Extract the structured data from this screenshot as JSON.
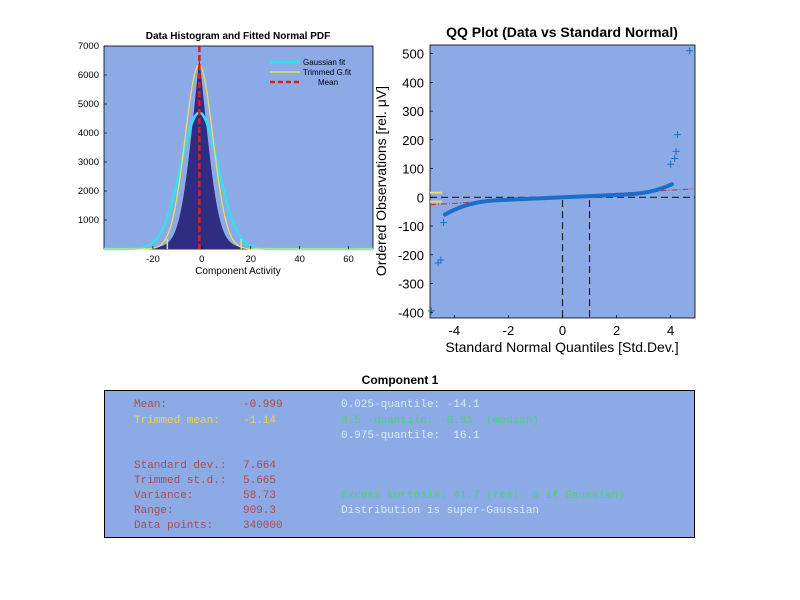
{
  "histogram": {
    "title": "Data Histogram and Fitted Normal PDF",
    "xlabel": "Component Activity",
    "legend": [
      "Gaussian fit",
      "Trimmed G.fit",
      "Mean"
    ]
  },
  "qq": {
    "title": "QQ Plot (Data vs Standard Normal)",
    "xlabel": "Standard Normal Quantiles [Std.Dev.]",
    "ylabel": "Ordered Observations [rel. μV]"
  },
  "stats": {
    "title": "Component 1",
    "mean_label": "Mean:",
    "mean_value": "-0.999",
    "tmean_label": "Trimmed mean:",
    "tmean_value": "-1.14",
    "q025": "0.025-quantile: -14.1",
    "q05": "0.5 -quantile: -0.81  (median)",
    "q975": "0.975-quantile:  16.1",
    "std_label": "Standard dev.:",
    "std_value": "7.664",
    "tstd_label": "Trimmed st.d.:",
    "tstd_value": "5.665",
    "var_label": "Variance:",
    "var_value": "58.73",
    "range_label": "Range:",
    "range_value": "909.3",
    "dp_label": "Data points:",
    "dp_value": "340000",
    "kurtosis_text": "Excess kurtosis: 41.7 (real: 0 if Gaussian)",
    "dist_text": "Distribution is super-Gaussian"
  },
  "colors": {
    "plot_bg": "#8caae6",
    "bars": "#2e2d82",
    "gaussian": "#33e0f0",
    "trimmed": "#e8e05a",
    "mean": "#d62020",
    "qq_points": "#1a6fc8",
    "qq_ref": "#c03040"
  },
  "chart_data": [
    {
      "type": "bar",
      "title": "Data Histogram and Fitted Normal PDF",
      "xlabel": "Component Activity",
      "ylabel": "",
      "xlim": [
        -40,
        70
      ],
      "ylim": [
        0,
        7000
      ],
      "xticks": [
        -20,
        0,
        20,
        40,
        60
      ],
      "yticks": [
        1000,
        2000,
        3000,
        4000,
        5000,
        6000,
        7000
      ],
      "legend_position": "top-right",
      "series": [
        {
          "name": "Gaussian fit",
          "mean": -0.999,
          "std": 7.664,
          "peak": 4700
        },
        {
          "name": "Trimmed G.fit",
          "mean": -1.14,
          "std": 5.665,
          "peak": 6350
        },
        {
          "name": "Mean",
          "x": -0.999
        }
      ],
      "histogram_mean": -1,
      "histogram_std": 4.5,
      "histogram_peak": 6600,
      "quantile_markers": [
        -14.1,
        16.1
      ]
    },
    {
      "type": "scatter",
      "title": "QQ Plot (Data vs Standard Normal)",
      "xlabel": "Standard Normal Quantiles [Std.Dev.]",
      "ylabel": "Ordered Observations [rel. μV]",
      "xlim": [
        -4.9,
        4.9
      ],
      "ylim": [
        -420,
        530
      ],
      "xticks": [
        -4,
        -2,
        0,
        2,
        4
      ],
      "yticks": [
        -400,
        -300,
        -200,
        -100,
        0,
        100,
        200,
        300,
        400,
        500
      ],
      "outliers": [
        {
          "x": -4.85,
          "y": -395
        },
        {
          "x": -4.6,
          "y": -228
        },
        {
          "x": -4.5,
          "y": -218
        },
        {
          "x": -4.4,
          "y": -88
        },
        {
          "x": 4.0,
          "y": 115
        },
        {
          "x": 4.15,
          "y": 135
        },
        {
          "x": 4.2,
          "y": 160
        },
        {
          "x": 4.25,
          "y": 218
        },
        {
          "x": 4.7,
          "y": 510
        }
      ]
    }
  ]
}
